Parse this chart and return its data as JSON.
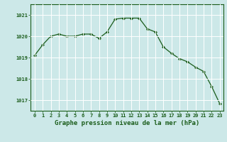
{
  "x": [
    0,
    1,
    2,
    3,
    4,
    5,
    6,
    7,
    8,
    9,
    10,
    11,
    12,
    13,
    14,
    15,
    16,
    17,
    18,
    19,
    20,
    21,
    22,
    23
  ],
  "y": [
    1019.1,
    1019.6,
    1020.0,
    1020.1,
    1020.0,
    1020.0,
    1020.1,
    1020.1,
    1019.9,
    1020.2,
    1020.8,
    1020.85,
    1020.85,
    1020.85,
    1020.35,
    1020.2,
    1019.5,
    1019.2,
    1018.95,
    1018.8,
    1018.55,
    1018.35,
    1017.65,
    1016.85
  ],
  "line_color": "#1a5c1a",
  "marker": "D",
  "marker_size": 2.0,
  "bg_color": "#cce8e8",
  "grid_color": "#ffffff",
  "axis_color": "#1a5c1a",
  "xlabel": "Graphe pression niveau de la mer (hPa)",
  "xlabel_color": "#1a5c1a",
  "ylim": [
    1016.5,
    1021.5
  ],
  "yticks": [
    1017,
    1018,
    1019,
    1020,
    1021
  ],
  "xtick_labels": [
    "0",
    "1",
    "2",
    "3",
    "4",
    "5",
    "6",
    "7",
    "8",
    "9",
    "10",
    "11",
    "12",
    "13",
    "14",
    "15",
    "16",
    "17",
    "18",
    "19",
    "20",
    "21",
    "22",
    "23"
  ],
  "tick_fontsize": 5.0,
  "label_fontsize": 6.5,
  "linewidth": 0.9
}
